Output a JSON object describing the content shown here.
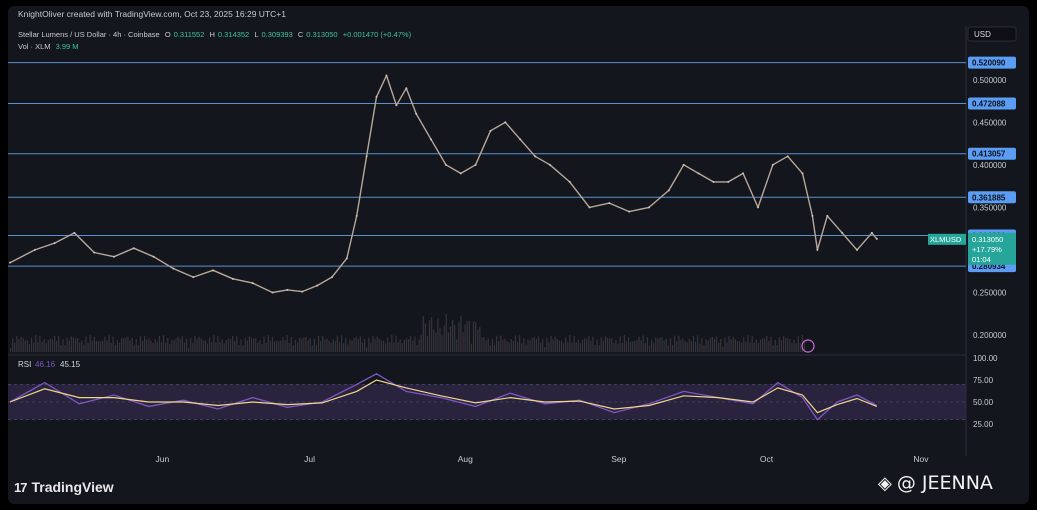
{
  "header": {
    "attribution": "KnightOliver created with TradingView.com, Oct 23, 2025 16:29 UTC+1",
    "symbol": "Stellar Lumens / US Dollar · 4h · Coinbase",
    "open_label": "O",
    "open": "0.311552",
    "high_label": "H",
    "high": "0.314352",
    "low_label": "L",
    "low": "0.309393",
    "close_label": "C",
    "close": "0.313050",
    "change": "+0.001470 (+0.47%)",
    "vol_label": "Vol · XLM",
    "vol": "3.99 M"
  },
  "currency": "USD",
  "rsi": {
    "label": "RSI",
    "v1": "46.16",
    "v2": "45.15"
  },
  "price_badge": {
    "symbol": "XLMUSD",
    "price": "0.313050",
    "pct": "+17.79%",
    "time": "01:04"
  },
  "footer": {
    "brand": "TradingView",
    "watermark": "@ JEENNA"
  },
  "colors": {
    "bg": "#14161d",
    "level_line": "#5b8fcf",
    "badge": "#5b9df2",
    "current_badge": "#26a69a",
    "rsi_line": "#7e57c2",
    "rsi_ma": "#f0d68a",
    "rsi_band": "#3a2f5a"
  },
  "chart_data": {
    "type": "line",
    "price_scale": {
      "ylim": [
        0.18,
        0.535
      ],
      "ticks": [
        "0.500000",
        "0.450000",
        "0.400000",
        "0.350000",
        "0.250000",
        "0.200000"
      ],
      "tick_values": [
        0.5,
        0.45,
        0.4,
        0.35,
        0.25,
        0.2
      ]
    },
    "levels": [
      "0.520090",
      "0.472088",
      "0.413057",
      "0.361885",
      "0.316936",
      "0.280934"
    ],
    "level_values": [
      0.52009,
      0.472088,
      0.413057,
      0.361885,
      0.316936,
      0.280934
    ],
    "x_axis_labels": [
      "Jun",
      "Jul",
      "Aug",
      "Sep",
      "Oct",
      "Nov"
    ],
    "x_axis_dates": [
      "2025-06-01",
      "2025-07-01",
      "2025-08-01",
      "2025-09-01",
      "2025-10-01",
      "2025-11-01"
    ],
    "x_range": [
      "2025-05-01",
      "2025-11-10"
    ],
    "price_series": {
      "dates": [
        "2025-05-01",
        "2025-05-06",
        "2025-05-10",
        "2025-05-14",
        "2025-05-18",
        "2025-05-22",
        "2025-05-26",
        "2025-05-30",
        "2025-06-03",
        "2025-06-07",
        "2025-06-11",
        "2025-06-15",
        "2025-06-19",
        "2025-06-23",
        "2025-06-26",
        "2025-06-29",
        "2025-07-02",
        "2025-07-05",
        "2025-07-08",
        "2025-07-10",
        "2025-07-12",
        "2025-07-14",
        "2025-07-16",
        "2025-07-18",
        "2025-07-20",
        "2025-07-22",
        "2025-07-25",
        "2025-07-28",
        "2025-07-31",
        "2025-08-03",
        "2025-08-06",
        "2025-08-09",
        "2025-08-12",
        "2025-08-15",
        "2025-08-18",
        "2025-08-22",
        "2025-08-26",
        "2025-08-30",
        "2025-09-03",
        "2025-09-07",
        "2025-09-11",
        "2025-09-14",
        "2025-09-17",
        "2025-09-20",
        "2025-09-23",
        "2025-09-26",
        "2025-09-29",
        "2025-10-02",
        "2025-10-05",
        "2025-10-08",
        "2025-10-10",
        "2025-10-11",
        "2025-10-13",
        "2025-10-16",
        "2025-10-19",
        "2025-10-22",
        "2025-10-23"
      ],
      "values": [
        0.285,
        0.3,
        0.308,
        0.32,
        0.297,
        0.292,
        0.302,
        0.292,
        0.278,
        0.268,
        0.276,
        0.266,
        0.261,
        0.25,
        0.253,
        0.251,
        0.258,
        0.268,
        0.29,
        0.34,
        0.41,
        0.48,
        0.505,
        0.47,
        0.49,
        0.46,
        0.43,
        0.4,
        0.39,
        0.4,
        0.44,
        0.45,
        0.43,
        0.41,
        0.4,
        0.38,
        0.35,
        0.355,
        0.345,
        0.35,
        0.37,
        0.4,
        0.39,
        0.38,
        0.38,
        0.39,
        0.35,
        0.4,
        0.41,
        0.39,
        0.34,
        0.3,
        0.34,
        0.32,
        0.3,
        0.32,
        0.313
      ]
    },
    "rsi_scale": {
      "ylim": [
        0,
        100
      ],
      "ticks": [
        "100.00",
        "75.00",
        "50.00",
        "25.00"
      ],
      "tick_values": [
        100,
        75,
        50,
        25
      ],
      "band": [
        30,
        70
      ]
    },
    "rsi_series": {
      "dates": [
        "2025-05-01",
        "2025-05-08",
        "2025-05-15",
        "2025-05-22",
        "2025-05-29",
        "2025-06-05",
        "2025-06-12",
        "2025-06-19",
        "2025-06-26",
        "2025-07-03",
        "2025-07-10",
        "2025-07-14",
        "2025-07-20",
        "2025-07-27",
        "2025-08-03",
        "2025-08-10",
        "2025-08-17",
        "2025-08-24",
        "2025-08-31",
        "2025-09-07",
        "2025-09-14",
        "2025-09-21",
        "2025-09-28",
        "2025-10-03",
        "2025-10-08",
        "2025-10-11",
        "2025-10-15",
        "2025-10-19",
        "2025-10-23"
      ],
      "values": [
        50,
        72,
        48,
        58,
        45,
        52,
        42,
        55,
        44,
        50,
        70,
        82,
        62,
        55,
        45,
        60,
        48,
        52,
        38,
        48,
        62,
        55,
        48,
        72,
        55,
        30,
        50,
        58,
        46
      ]
    },
    "rsi_ma_series": {
      "dates": [
        "2025-05-01",
        "2025-05-08",
        "2025-05-15",
        "2025-05-22",
        "2025-05-29",
        "2025-06-05",
        "2025-06-12",
        "2025-06-19",
        "2025-06-26",
        "2025-07-03",
        "2025-07-10",
        "2025-07-14",
        "2025-07-20",
        "2025-07-27",
        "2025-08-03",
        "2025-08-10",
        "2025-08-17",
        "2025-08-24",
        "2025-08-31",
        "2025-09-07",
        "2025-09-14",
        "2025-09-21",
        "2025-09-28",
        "2025-10-03",
        "2025-10-08",
        "2025-10-11",
        "2025-10-15",
        "2025-10-19",
        "2025-10-23"
      ],
      "values": [
        50,
        65,
        55,
        55,
        50,
        50,
        46,
        50,
        47,
        49,
        62,
        75,
        66,
        57,
        49,
        55,
        50,
        51,
        42,
        46,
        57,
        55,
        50,
        66,
        58,
        38,
        47,
        54,
        45
      ]
    }
  }
}
